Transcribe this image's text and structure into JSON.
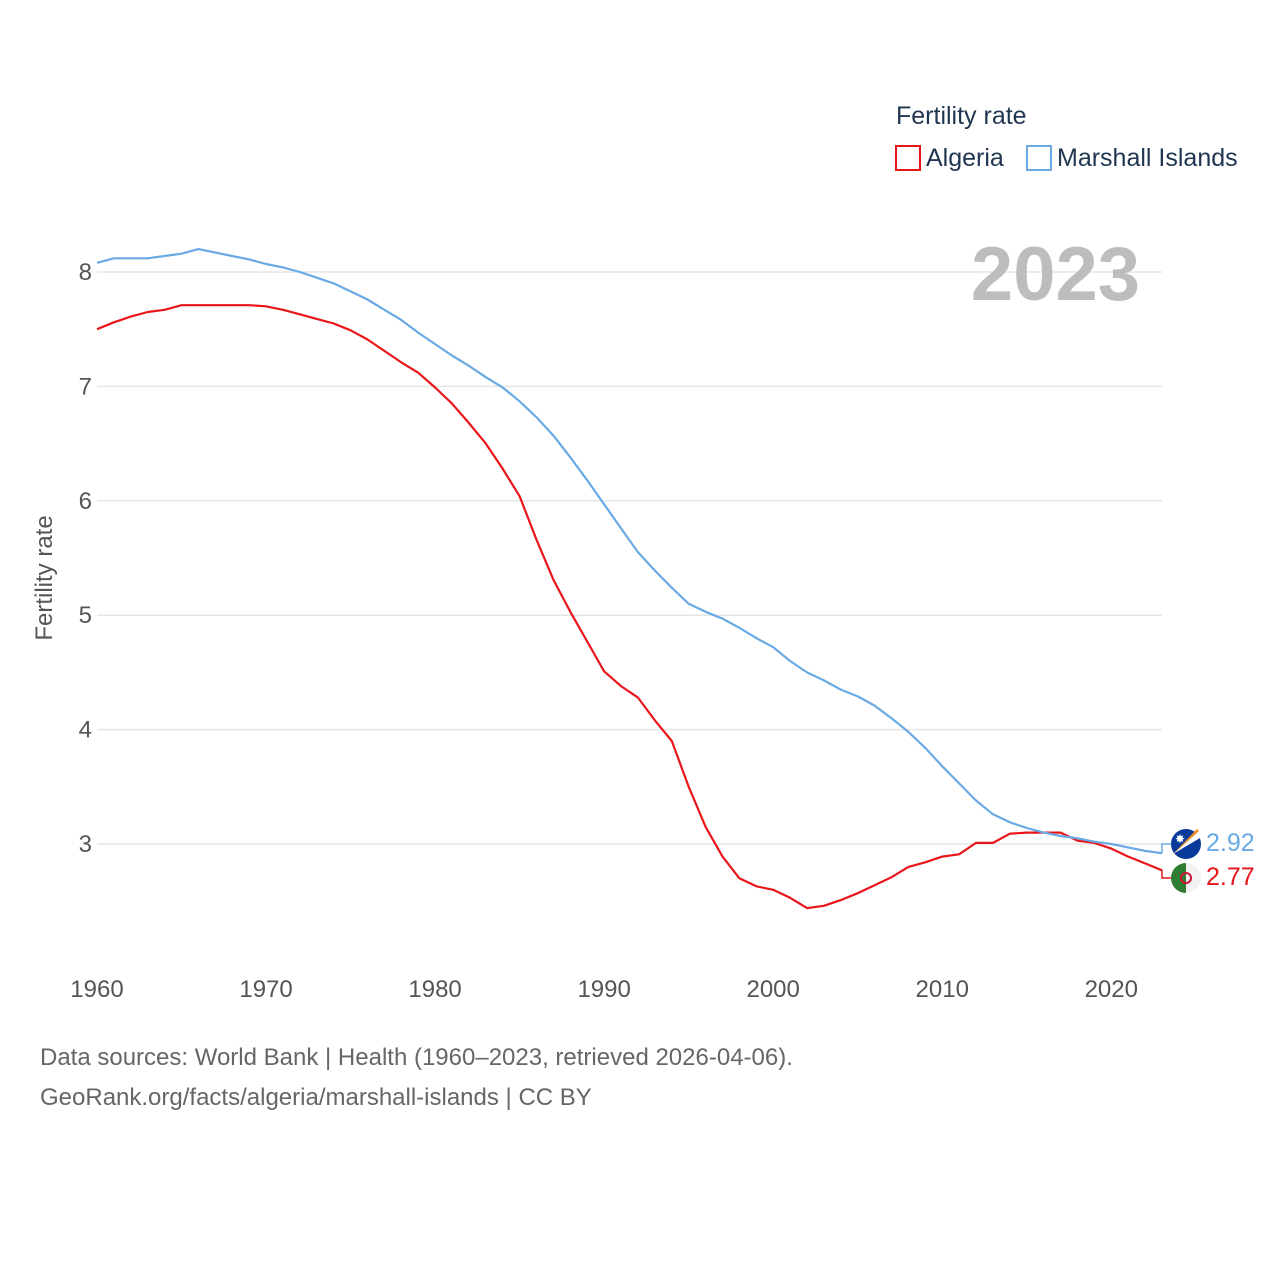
{
  "chart_data": {
    "type": "line",
    "title": "",
    "xlabel": "",
    "ylabel": "Fertility rate",
    "xlim": [
      1960,
      2023
    ],
    "ylim": [
      2,
      8.6
    ],
    "x_ticks": [
      1960,
      1970,
      1980,
      1990,
      2000,
      2010,
      2020
    ],
    "y_ticks": [
      3,
      4,
      5,
      6,
      7,
      8
    ],
    "grid": true,
    "legend_title": "Fertility rate",
    "legend_position": "top-right",
    "year_label": "2023",
    "x": [
      1960,
      1961,
      1962,
      1963,
      1964,
      1965,
      1966,
      1967,
      1968,
      1969,
      1970,
      1971,
      1972,
      1973,
      1974,
      1975,
      1976,
      1977,
      1978,
      1979,
      1980,
      1981,
      1982,
      1983,
      1984,
      1985,
      1986,
      1987,
      1988,
      1989,
      1990,
      1991,
      1992,
      1993,
      1994,
      1995,
      1996,
      1997,
      1998,
      1999,
      2000,
      2001,
      2002,
      2003,
      2004,
      2005,
      2006,
      2007,
      2008,
      2009,
      2010,
      2011,
      2012,
      2013,
      2014,
      2015,
      2016,
      2017,
      2018,
      2019,
      2020,
      2021,
      2022,
      2023
    ],
    "series": [
      {
        "name": "Algeria",
        "color": "#e8161a",
        "end_label": "2.77",
        "values": [
          7.5,
          7.56,
          7.61,
          7.65,
          7.67,
          7.71,
          7.71,
          7.71,
          7.71,
          7.71,
          7.7,
          7.67,
          7.63,
          7.59,
          7.55,
          7.49,
          7.41,
          7.31,
          7.21,
          7.12,
          6.99,
          6.85,
          6.68,
          6.5,
          6.28,
          6.04,
          5.66,
          5.31,
          5.03,
          4.77,
          4.51,
          4.38,
          4.28,
          4.08,
          3.9,
          3.5,
          3.15,
          2.89,
          2.7,
          2.63,
          2.6,
          2.53,
          2.44,
          2.46,
          2.51,
          2.57,
          2.64,
          2.71,
          2.8,
          2.84,
          2.89,
          2.91,
          3.01,
          3.01,
          3.09,
          3.1,
          3.1,
          3.1,
          3.03,
          3.01,
          2.96,
          2.89,
          2.83,
          2.77
        ]
      },
      {
        "name": "Marshall Islands",
        "color": "#6aaae4",
        "end_label": "2.92",
        "values": [
          8.08,
          8.12,
          8.12,
          8.12,
          8.14,
          8.16,
          8.2,
          8.17,
          8.14,
          8.11,
          8.07,
          8.04,
          8.0,
          7.95,
          7.9,
          7.83,
          7.76,
          7.67,
          7.58,
          7.47,
          7.37,
          7.27,
          7.18,
          7.08,
          6.99,
          6.87,
          6.73,
          6.57,
          6.38,
          6.18,
          5.97,
          5.76,
          5.55,
          5.39,
          5.24,
          5.1,
          5.03,
          4.97,
          4.89,
          4.8,
          4.72,
          4.6,
          4.5,
          4.43,
          4.35,
          4.29,
          4.21,
          4.1,
          3.98,
          3.84,
          3.68,
          3.53,
          3.38,
          3.26,
          3.19,
          3.14,
          3.1,
          3.07,
          3.05,
          3.02,
          3.0,
          2.97,
          2.94,
          2.92
        ]
      }
    ]
  },
  "footer": {
    "sources": "Data sources: World Bank | Health (1960–2023, retrieved 2026-04-06).",
    "credit": "GeoRank.org/facts/algeria/marshall-islands | CC BY"
  }
}
